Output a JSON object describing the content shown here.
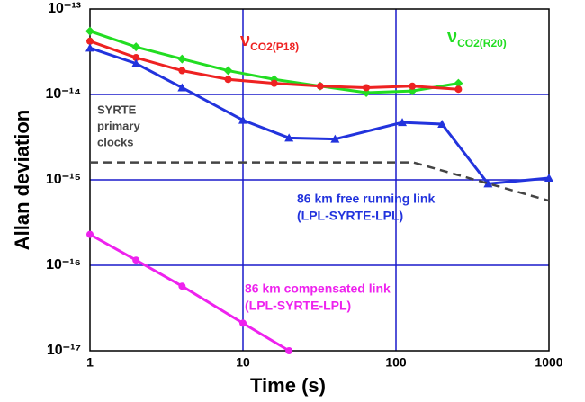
{
  "chart_data": {
    "type": "line",
    "xlabel": "Time (s)",
    "ylabel": "Allan deviation",
    "xscale": "log",
    "yscale": "log",
    "xlim": [
      1,
      1000
    ],
    "ylim": [
      1e-17,
      1e-13
    ],
    "xticks": [
      1,
      10,
      100,
      1000
    ],
    "yticks": [
      {
        "value": 1e-17,
        "label": "10⁻¹⁷"
      },
      {
        "value": 1e-16,
        "label": "10⁻¹⁶"
      },
      {
        "value": 1e-15,
        "label": "10⁻¹⁵"
      },
      {
        "value": 1e-14,
        "label": "10⁻¹⁴"
      },
      {
        "value": 1e-13,
        "label": "10⁻¹³"
      }
    ],
    "grid": true,
    "grid_color": "#1a1acc",
    "series": [
      {
        "label": [
          "νCO2(R20)"
        ],
        "color": "#22dd22",
        "marker": "diamond",
        "x": [
          1,
          2,
          4,
          8,
          16,
          32,
          64,
          128,
          256
        ],
        "values": [
          5.5e-14,
          3.6e-14,
          2.6e-14,
          1.9e-14,
          1.5e-14,
          1.25e-14,
          1.05e-14,
          1.1e-14,
          1.35e-14
        ]
      },
      {
        "label": [
          "νCO2(P18)"
        ],
        "color": "#ee2222",
        "marker": "circle",
        "x": [
          1,
          2,
          4,
          8,
          16,
          32,
          64,
          128,
          256
        ],
        "values": [
          4.2e-14,
          2.7e-14,
          1.9e-14,
          1.5e-14,
          1.35e-14,
          1.25e-14,
          1.2e-14,
          1.25e-14,
          1.15e-14
        ]
      },
      {
        "label": [
          "86 km free running link",
          "(LPL-SYRTE-LPL)"
        ],
        "color": "#2233dd",
        "marker": "triangle",
        "x": [
          1,
          2,
          4,
          10,
          20,
          40,
          110,
          200,
          400,
          1000
        ],
        "values": [
          3.5e-14,
          2.3e-14,
          1.2e-14,
          5e-15,
          3.1e-15,
          3e-15,
          4.7e-15,
          4.5e-15,
          9e-16,
          1.05e-15
        ]
      },
      {
        "label": [
          "SYRTE",
          "primary",
          "clocks"
        ],
        "color": "#444444",
        "marker": "none",
        "dashed": true,
        "x": [
          1,
          130,
          1000
        ],
        "values": [
          1.6e-15,
          1.6e-15,
          5.7e-16
        ]
      },
      {
        "label": [
          "86 km compensated link",
          "(LPL-SYRTE-LPL)"
        ],
        "color": "#ee22ee",
        "marker": "circle",
        "x": [
          1,
          2,
          4,
          10,
          20
        ],
        "values": [
          2.3e-16,
          1.15e-16,
          5.7e-17,
          2.1e-17,
          1e-17
        ]
      }
    ]
  }
}
